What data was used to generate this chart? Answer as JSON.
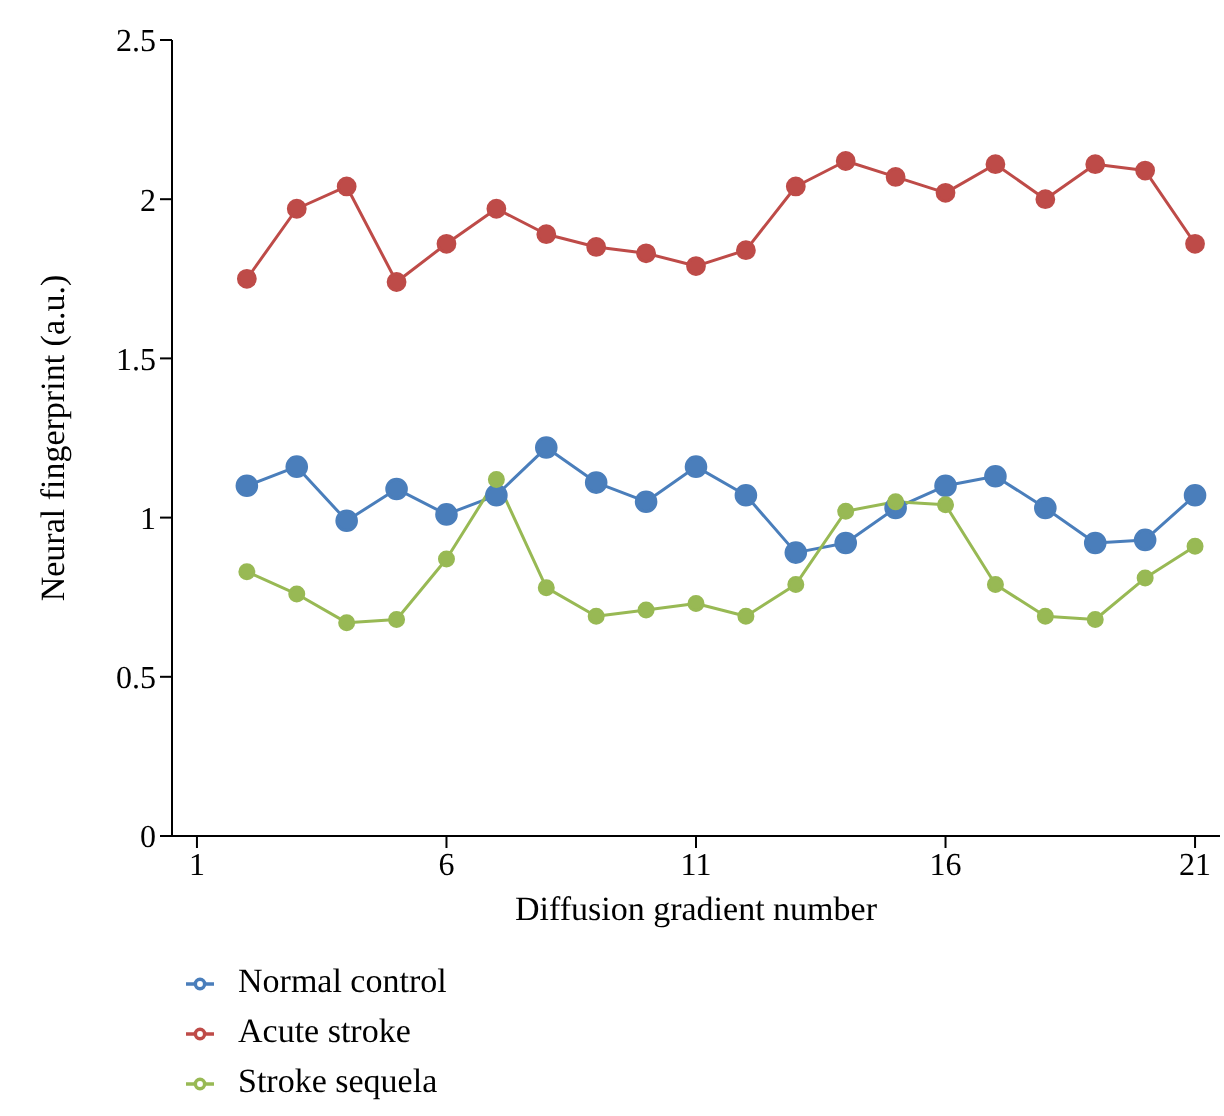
{
  "chart_data": {
    "type": "line",
    "xlabel": "Diffusion gradient number",
    "ylabel": "Neural fingerprint (a.u.)",
    "x": [
      2,
      3,
      4,
      5,
      6,
      7,
      8,
      9,
      10,
      11,
      12,
      13,
      14,
      15,
      16,
      17,
      18,
      19,
      20,
      21
    ],
    "series": [
      {
        "name": "Normal control",
        "color": "#4a7ebb",
        "values": [
          1.1,
          1.16,
          0.99,
          1.09,
          1.01,
          1.07,
          1.22,
          1.11,
          1.05,
          1.16,
          1.07,
          0.89,
          0.92,
          1.03,
          1.1,
          1.13,
          1.03,
          0.92,
          0.93,
          1.07
        ]
      },
      {
        "name": "Acute stroke",
        "color": "#be4b48",
        "values": [
          1.75,
          1.97,
          2.04,
          1.74,
          1.86,
          1.97,
          1.89,
          1.85,
          1.83,
          1.79,
          1.84,
          2.04,
          2.12,
          2.07,
          2.02,
          2.11,
          2.0,
          2.11,
          2.09,
          1.86
        ]
      },
      {
        "name": "Stroke sequela",
        "color": "#98b954",
        "values": [
          0.83,
          0.76,
          0.67,
          0.68,
          0.87,
          1.12,
          0.78,
          0.69,
          0.71,
          0.73,
          0.69,
          0.79,
          1.02,
          1.05,
          1.04,
          0.79,
          0.69,
          0.68,
          0.81,
          0.91
        ]
      }
    ],
    "xlim": [
      0.5,
      21.5
    ],
    "xticks": [
      1,
      6,
      11,
      16,
      21
    ],
    "ylim": [
      0,
      2.5
    ],
    "yticks": [
      0,
      0.5,
      1,
      1.5,
      2,
      2.5
    ],
    "grid": false,
    "legend": "bottom left",
    "marker": "circle",
    "line_style": "solid"
  }
}
